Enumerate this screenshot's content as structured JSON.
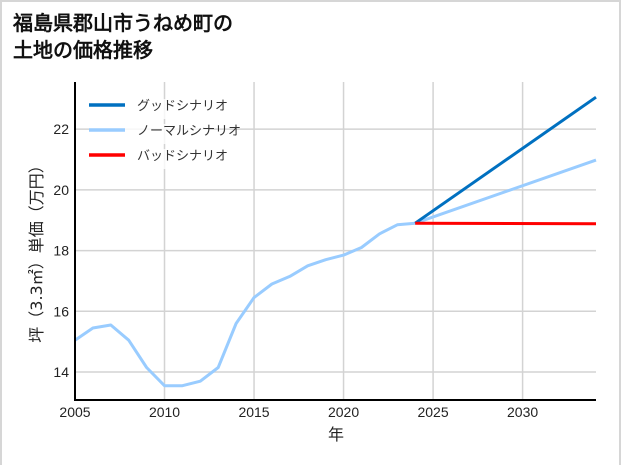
{
  "chart_data": {
    "type": "line",
    "title": "福島県郡山市うねめ町の\n土地の価格推移",
    "title_lines": [
      "福島県郡山市うねめ町の",
      "土地の価格推移"
    ],
    "xlabel": "年",
    "ylabel": "坪（3.3㎡）単価（万円）",
    "xlim": [
      2005,
      2034.1
    ],
    "ylim": [
      13.08,
      23.55
    ],
    "xticks": [
      2005,
      2010,
      2015,
      2020,
      2025,
      2030
    ],
    "yticks": [
      14,
      16,
      18,
      20,
      22
    ],
    "grid": true,
    "legend_position": "upper left",
    "series": [
      {
        "name": "グッドシナリオ",
        "color": "#0070c0",
        "x": [
          2024,
          2034.1
        ],
        "y": [
          18.9,
          23.05
        ]
      },
      {
        "name": "ノーマルシナリオ",
        "color": "#99ccff",
        "x": [
          2005,
          2006,
          2007,
          2008,
          2009,
          2010,
          2011,
          2012,
          2013,
          2014,
          2015,
          2016,
          2017,
          2018,
          2019,
          2020,
          2021,
          2022,
          2023,
          2024,
          2034.1
        ],
        "y": [
          15.05,
          15.45,
          15.55,
          15.05,
          14.15,
          13.55,
          13.55,
          13.7,
          14.15,
          15.6,
          16.45,
          16.9,
          17.15,
          17.5,
          17.7,
          17.85,
          18.1,
          18.55,
          18.85,
          18.9,
          20.98
        ]
      },
      {
        "name": "バッドシナリオ",
        "color": "#ff0000",
        "x": [
          2024,
          2034.1
        ],
        "y": [
          18.9,
          18.88
        ]
      }
    ]
  },
  "legend": [
    {
      "label": "グッドシナリオ",
      "color": "#0070c0"
    },
    {
      "label": "ノーマルシナリオ",
      "color": "#99ccff"
    },
    {
      "label": "バッドシナリオ",
      "color": "#ff0000"
    }
  ]
}
